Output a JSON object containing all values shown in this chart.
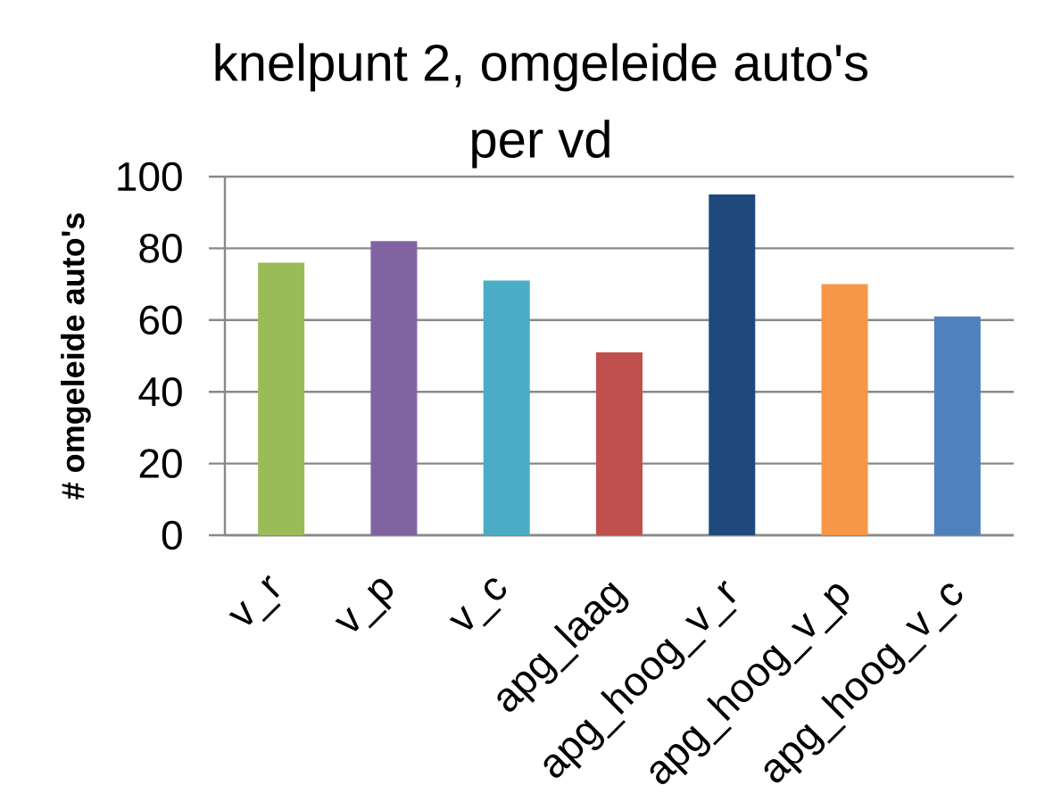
{
  "chart_data": {
    "type": "bar",
    "title": "knelpunt 2, omgeleide auto's per vd",
    "ylabel": "# omgeleide auto's",
    "categories": [
      "v_r",
      "v_p",
      "v_c",
      "apg_laag",
      "apg_hoog_v_r",
      "apg_hoog_v_p",
      "apg_hoog_v_c"
    ],
    "values": [
      76,
      82,
      71,
      51,
      95,
      70,
      61
    ],
    "colors": [
      "#9bbb59",
      "#8064a2",
      "#4bacc6",
      "#c0504d",
      "#1f497d",
      "#f79646",
      "#4f81bd"
    ],
    "ylim": [
      0,
      100
    ],
    "yticks": [
      0,
      20,
      40,
      60,
      80,
      100
    ],
    "grid": "y"
  }
}
